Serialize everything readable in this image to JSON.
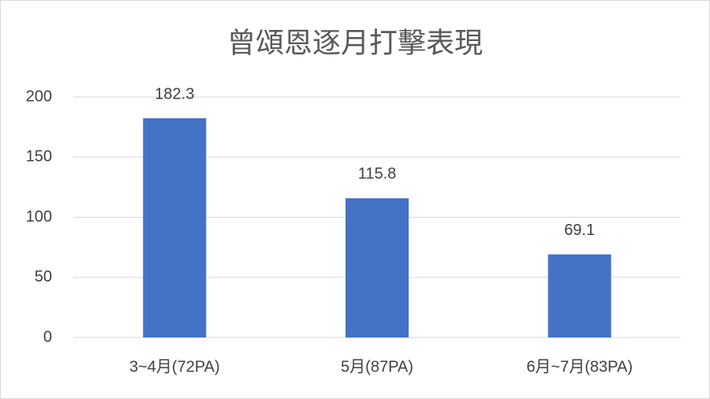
{
  "chart_data": {
    "type": "bar",
    "title": "曾頌恩逐月打擊表現",
    "categories": [
      "3~4月(72PA)",
      "5月(87PA)",
      "6月~7月(83PA)"
    ],
    "values": [
      182.3,
      115.8,
      69.1
    ],
    "color": "#4472c4",
    "ylim": [
      0,
      200
    ],
    "yticks": [
      0,
      50,
      100,
      150,
      200
    ],
    "grid": true,
    "data_labels": true
  }
}
